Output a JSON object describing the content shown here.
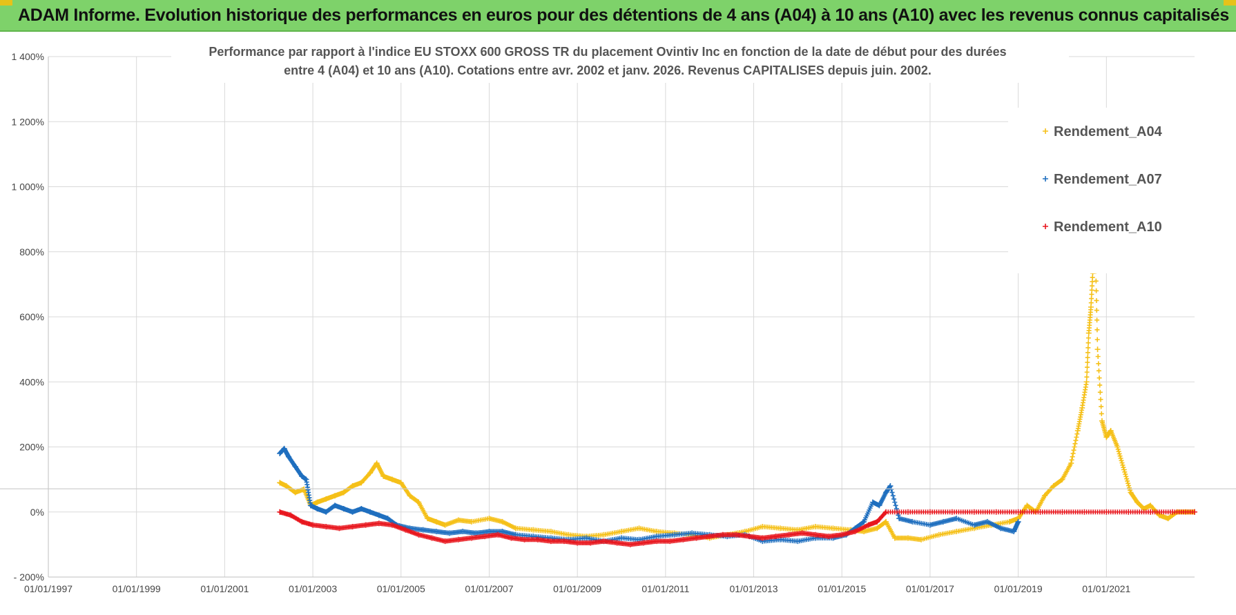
{
  "banner": {
    "title": "ADAM Informe. Evolution historique des performances en euros pour des détentions de 4 ans (A04) à 10 ans (A10) avec les revenus connus capitalisés",
    "background": "#7ed26a"
  },
  "chart_data": {
    "type": "scatter",
    "title_line1": "Performance par rapport à l'indice EU STOXX 600 GROSS TR  du placement Ovintiv Inc en fonction de la date de début pour des durées",
    "title_line2": "entre 4 (A04) et 10 ans (A10).  Cotations entre avr. 2002 et janv. 2026. Revenus CAPITALISES depuis juin. 2002.",
    "xlabel": "",
    "ylabel": "",
    "xlim": [
      1997.0,
      2023.0
    ],
    "ylim": [
      -200,
      1400
    ],
    "y_ticks": [
      {
        "value": -200,
        "label": "- 200%"
      },
      {
        "value": 0,
        "label": "0%"
      },
      {
        "value": 200,
        "label": "200%"
      },
      {
        "value": 400,
        "label": "400%"
      },
      {
        "value": 600,
        "label": "600%"
      },
      {
        "value": 800,
        "label": "800%"
      },
      {
        "value": 1000,
        "label": "1 000%"
      },
      {
        "value": 1200,
        "label": "1 200%"
      },
      {
        "value": 1400,
        "label": "1 400%"
      }
    ],
    "x_ticks": [
      {
        "value": 1997,
        "label": "01/01/1997"
      },
      {
        "value": 1999,
        "label": "01/01/1999"
      },
      {
        "value": 2001,
        "label": "01/01/2001"
      },
      {
        "value": 2003,
        "label": "01/01/2003"
      },
      {
        "value": 2005,
        "label": "01/01/2005"
      },
      {
        "value": 2007,
        "label": "01/01/2007"
      },
      {
        "value": 2009,
        "label": "01/01/2009"
      },
      {
        "value": 2011,
        "label": "01/01/2011"
      },
      {
        "value": 2013,
        "label": "01/01/2013"
      },
      {
        "value": 2015,
        "label": "01/01/2015"
      },
      {
        "value": 2017,
        "label": "01/01/2017"
      },
      {
        "value": 2019,
        "label": "01/01/2019"
      },
      {
        "value": 2021,
        "label": "01/01/2021"
      }
    ],
    "gridlines": true,
    "legend_position": "top-right",
    "series": [
      {
        "name": "Rendement_A04",
        "color": "#f5c018",
        "x": [
          2002.25,
          2002.4,
          2002.6,
          2002.8,
          2002.95,
          2003.1,
          2003.3,
          2003.5,
          2003.7,
          2003.9,
          2004.1,
          2004.3,
          2004.45,
          2004.6,
          2004.8,
          2005.0,
          2005.2,
          2005.4,
          2005.6,
          2005.8,
          2006.0,
          2006.3,
          2006.6,
          2007.0,
          2007.3,
          2007.6,
          2008.0,
          2008.4,
          2008.8,
          2009.2,
          2009.6,
          2010.0,
          2010.4,
          2010.8,
          2011.2,
          2011.6,
          2012.0,
          2012.4,
          2012.8,
          2013.2,
          2013.6,
          2014.0,
          2014.4,
          2014.8,
          2015.2,
          2015.5,
          2015.8,
          2016.0,
          2016.2,
          2016.5,
          2016.8,
          2017.2,
          2017.6,
          2018.0,
          2018.4,
          2018.8,
          2019.0,
          2019.2,
          2019.4,
          2019.6,
          2019.8,
          2020.0,
          2020.2,
          2020.35,
          2020.45,
          2020.55,
          2020.6,
          2020.65,
          2020.7,
          2020.75,
          2020.8,
          2020.9,
          2021.0,
          2021.1,
          2021.25,
          2021.4,
          2021.55,
          2021.7,
          2021.85,
          2022.0,
          2022.2,
          2022.4,
          2022.6,
          2022.8,
          2023.0
        ],
        "values": [
          90,
          80,
          60,
          70,
          20,
          30,
          40,
          50,
          60,
          80,
          90,
          120,
          150,
          110,
          100,
          90,
          50,
          30,
          -20,
          -30,
          -40,
          -25,
          -30,
          -20,
          -30,
          -50,
          -55,
          -60,
          -70,
          -75,
          -70,
          -60,
          -50,
          -60,
          -65,
          -70,
          -80,
          -70,
          -60,
          -45,
          -50,
          -55,
          -45,
          -50,
          -55,
          -60,
          -50,
          -30,
          -80,
          -80,
          -85,
          -70,
          -60,
          -50,
          -40,
          -30,
          -20,
          20,
          0,
          50,
          80,
          100,
          150,
          250,
          320,
          400,
          550,
          630,
          760,
          800,
          500,
          280,
          230,
          250,
          200,
          130,
          60,
          30,
          10,
          20,
          -10,
          -20,
          0,
          0,
          0
        ]
      },
      {
        "name": "Rendement_A07",
        "color": "#1f6fbf",
        "x": [
          2002.25,
          2002.35,
          2002.45,
          2002.6,
          2002.75,
          2002.85,
          2002.95,
          2003.1,
          2003.3,
          2003.5,
          2003.7,
          2003.9,
          2004.1,
          2004.3,
          2004.5,
          2004.7,
          2004.9,
          2005.2,
          2005.5,
          2005.8,
          2006.1,
          2006.4,
          2006.7,
          2007.0,
          2007.3,
          2007.6,
          2008.0,
          2008.4,
          2008.8,
          2009.2,
          2009.6,
          2010.0,
          2010.4,
          2010.8,
          2011.2,
          2011.6,
          2012.0,
          2012.4,
          2012.8,
          2013.2,
          2013.6,
          2014.0,
          2014.4,
          2014.8,
          2015.1,
          2015.3,
          2015.5,
          2015.7,
          2015.85,
          2016.0,
          2016.1,
          2016.3,
          2016.6,
          2017.0,
          2017.3,
          2017.6,
          2018.0,
          2018.3,
          2018.6,
          2018.9,
          2019.0
        ],
        "values": [
          180,
          195,
          170,
          140,
          110,
          100,
          20,
          10,
          0,
          20,
          10,
          0,
          10,
          0,
          -10,
          -20,
          -40,
          -50,
          -55,
          -60,
          -65,
          -60,
          -65,
          -60,
          -60,
          -70,
          -75,
          -80,
          -85,
          -80,
          -90,
          -80,
          -85,
          -75,
          -70,
          -65,
          -70,
          -75,
          -70,
          -90,
          -85,
          -90,
          -80,
          -80,
          -70,
          -50,
          -30,
          30,
          20,
          60,
          80,
          -20,
          -30,
          -40,
          -30,
          -20,
          -40,
          -30,
          -50,
          -60,
          -30
        ]
      },
      {
        "name": "Rendement_A10",
        "color": "#e8171e",
        "x": [
          2002.25,
          2002.5,
          2002.75,
          2003.0,
          2003.3,
          2003.6,
          2003.9,
          2004.2,
          2004.5,
          2004.8,
          2005.1,
          2005.4,
          2005.7,
          2006.0,
          2006.3,
          2006.6,
          2006.9,
          2007.2,
          2007.5,
          2007.8,
          2008.1,
          2008.4,
          2008.7,
          2009.0,
          2009.3,
          2009.6,
          2009.9,
          2010.2,
          2010.5,
          2010.8,
          2011.1,
          2011.4,
          2011.7,
          2012.0,
          2012.3,
          2012.6,
          2012.9,
          2013.2,
          2013.5,
          2013.8,
          2014.1,
          2014.4,
          2014.7,
          2015.0,
          2015.3,
          2015.6,
          2015.8,
          2016.0,
          2016.5,
          2017.0,
          2017.5,
          2018.0,
          2018.5,
          2019.0,
          2019.5,
          2020.0,
          2020.5,
          2021.0,
          2021.5,
          2022.0,
          2022.5,
          2023.0
        ],
        "values": [
          0,
          -10,
          -30,
          -40,
          -45,
          -50,
          -45,
          -40,
          -35,
          -40,
          -55,
          -70,
          -80,
          -90,
          -85,
          -80,
          -75,
          -70,
          -80,
          -85,
          -85,
          -90,
          -90,
          -95,
          -95,
          -90,
          -95,
          -100,
          -95,
          -90,
          -90,
          -85,
          -80,
          -75,
          -70,
          -70,
          -75,
          -80,
          -75,
          -70,
          -65,
          -70,
          -75,
          -70,
          -60,
          -40,
          -30,
          0,
          0,
          0,
          0,
          0,
          0,
          0,
          0,
          0,
          0,
          0,
          0,
          0,
          0,
          0
        ]
      }
    ]
  }
}
